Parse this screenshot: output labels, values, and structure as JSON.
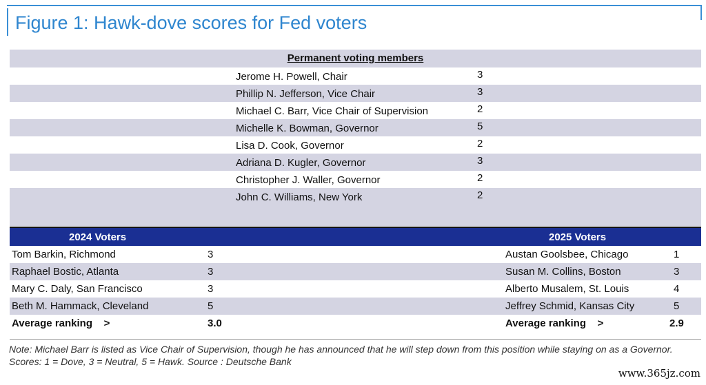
{
  "figure": {
    "title": "Figure 1: Hawk-dove scores for Fed voters"
  },
  "permanent": {
    "header": "Permanent voting members",
    "members": [
      {
        "name": "Jerome H. Powell, Chair",
        "score": "3"
      },
      {
        "name": "Phillip N. Jefferson, Vice Chair",
        "score": "3"
      },
      {
        "name": "Michael C. Barr, Vice Chair of Supervision",
        "score": "2"
      },
      {
        "name": "Michelle K. Bowman, Governor",
        "score": "5"
      },
      {
        "name": "Lisa D. Cook, Governor",
        "score": "2"
      },
      {
        "name": "Adriana D. Kugler, Governor",
        "score": "3"
      },
      {
        "name": "Christopher J. Waller, Governor",
        "score": "2"
      },
      {
        "name": "John C. Williams, New York",
        "score": "2"
      }
    ]
  },
  "voters_2024": {
    "header": "2024 Voters",
    "members": [
      {
        "name": "Tom Barkin, Richmond",
        "score": "3"
      },
      {
        "name": "Raphael Bostic, Atlanta",
        "score": "3"
      },
      {
        "name": "Mary C. Daly, San Francisco",
        "score": "3"
      },
      {
        "name": "Beth M. Hammack, Cleveland",
        "score": "5"
      }
    ],
    "average_label": "Average ranking    >",
    "average_value": "3.0"
  },
  "voters_2025": {
    "header": "2025 Voters",
    "members": [
      {
        "name": "Austan Goolsbee, Chicago",
        "score": "1"
      },
      {
        "name": "Susan M. Collins, Boston",
        "score": "3"
      },
      {
        "name": "Alberto Musalem, St. Louis",
        "score": "4"
      },
      {
        "name": "Jeffrey Schmid, Kansas City",
        "score": "5"
      }
    ],
    "average_label": "Average ranking    >",
    "average_value": "2.9"
  },
  "note": "Note: Michael Barr is listed as Vice Chair of Supervision, though he has announced that he will step down from this position while staying on as a Governor. Scores: 1 = Dove, 3 = Neutral, 5 = Hawk. Source : Deutsche Bank",
  "watermark": "www.365jz.com",
  "colors": {
    "title_blue": "#2f86cf",
    "band_gray": "#d4d4e2",
    "header_navy": "#1a2f93"
  }
}
